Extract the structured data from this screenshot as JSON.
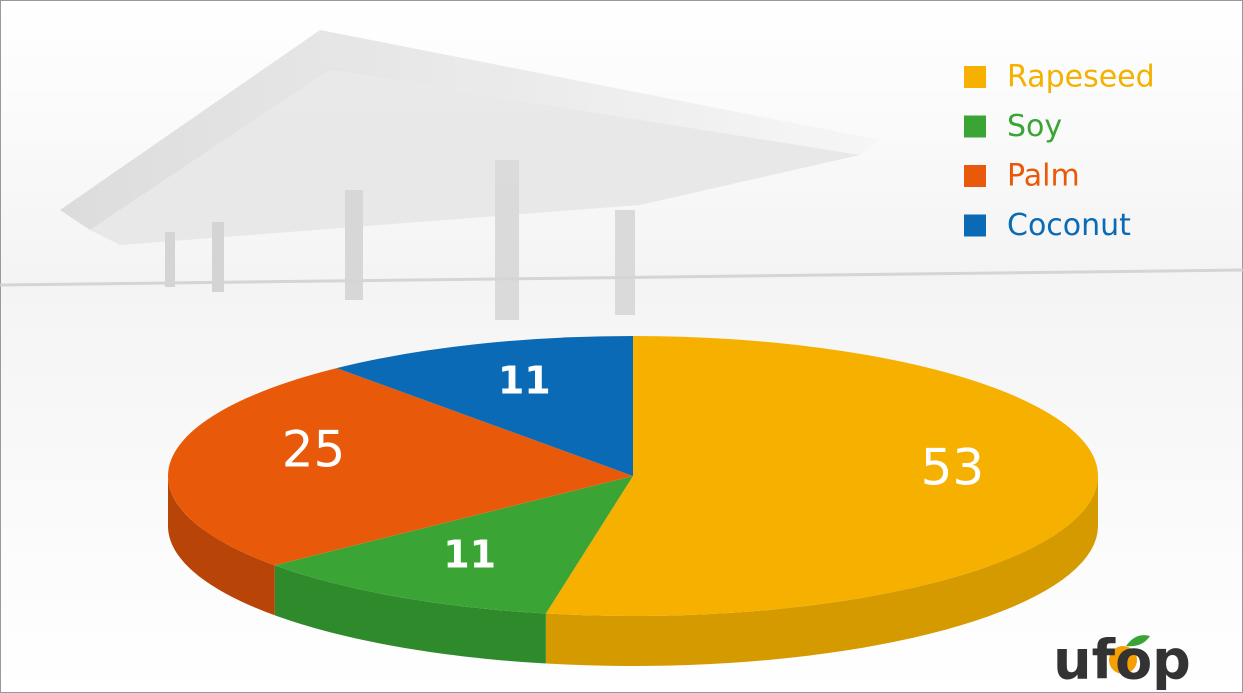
{
  "chart_data": {
    "type": "pie",
    "categories": [
      "Rapeseed",
      "Soy",
      "Palm",
      "Coconut"
    ],
    "values": [
      53,
      11,
      25,
      11
    ],
    "colors": [
      "#f5b000",
      "#3aa535",
      "#e85a0a",
      "#0a6ab5"
    ],
    "side_colors": [
      "#d49a00",
      "#2e8a2b",
      "#b84507",
      "#084f88"
    ],
    "legend": "top-right"
  },
  "logo": "ufop"
}
